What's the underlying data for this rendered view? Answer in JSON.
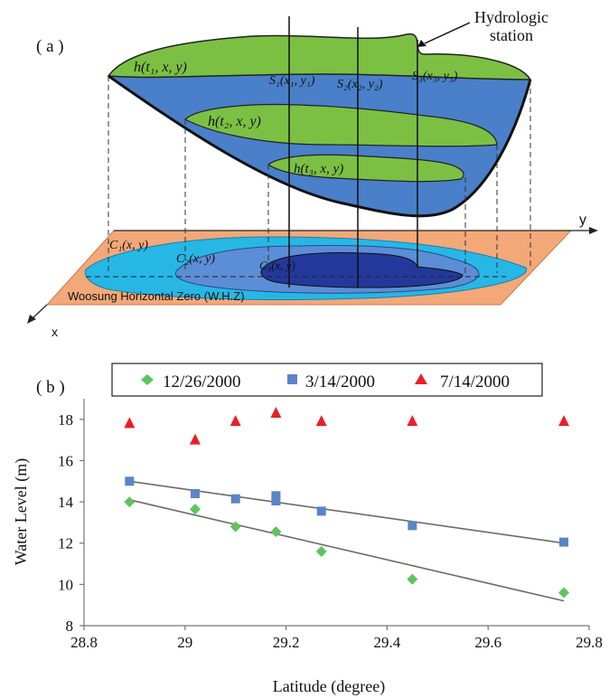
{
  "colors": {
    "green": "#7bc043",
    "blue_mid": "#4a7fc9",
    "light_blue": "#27b7e5",
    "mid_blue": "#5b8ed6",
    "dark_blue": "#23389a",
    "orange_plane": "#f2a878",
    "legend_green": "#5ec45e",
    "legend_blue": "#5b85c8",
    "legend_red": "#e8202a",
    "trend": "#6b6b6b"
  },
  "panel_a": {
    "label": "( a )",
    "station_callout": [
      "Hydrologic",
      "station"
    ],
    "surface_labels": {
      "h1": "h(t₁, x, y)",
      "h2": "h(t₂, x, y)",
      "h3": "h(t₃, x, y)"
    },
    "station_labels": [
      "S₁(x₁, y₁)",
      "S₂(x₂, y₂)",
      "S₃(x₃, y₃)"
    ],
    "contour_labels": [
      "C₁(x, y)",
      "C₂(x, y)",
      "C₃(x, y)"
    ],
    "axis_y": "y",
    "axis_x": "x",
    "plane_label": "Woosung Horizontal Zero (W.H.Z)"
  },
  "panel_b": {
    "label": "( b )"
  },
  "chart_data": {
    "type": "scatter",
    "title": "",
    "xlabel": "Latitude (degree)",
    "ylabel": "Water Level (m)",
    "xlim": [
      28.8,
      29.8
    ],
    "ylim": [
      8,
      19
    ],
    "xticks": [
      "28.8",
      "29",
      "29.2",
      "29.4",
      "29.6",
      "29.8"
    ],
    "yticks": [
      "8",
      "10",
      "12",
      "14",
      "16",
      "18"
    ],
    "legend_position": "top",
    "series": [
      {
        "name": "12/26/2000",
        "marker": "diamond",
        "color": "#5ec45e",
        "x": [
          28.89,
          29.02,
          29.1,
          29.18,
          29.27,
          29.45,
          29.75
        ],
        "y": [
          14.0,
          13.65,
          12.8,
          12.55,
          11.6,
          10.25,
          9.6
        ],
        "trend": [
          [
            28.89,
            14.1
          ],
          [
            29.75,
            9.2
          ]
        ]
      },
      {
        "name": "3/14/2000",
        "marker": "square",
        "color": "#5b85c8",
        "x": [
          28.89,
          29.02,
          29.1,
          29.18,
          29.18,
          29.27,
          29.45,
          29.75
        ],
        "y": [
          15.0,
          14.4,
          14.15,
          14.3,
          14.05,
          13.55,
          12.85,
          12.05
        ],
        "trend": [
          [
            28.89,
            15.0
          ],
          [
            29.75,
            12.0
          ]
        ]
      },
      {
        "name": "7/14/2000",
        "marker": "triangle",
        "color": "#e8202a",
        "x": [
          28.89,
          29.02,
          29.1,
          29.18,
          29.27,
          29.45,
          29.75
        ],
        "y": [
          17.8,
          17.0,
          17.9,
          18.3,
          17.9,
          17.9,
          17.9
        ]
      }
    ]
  }
}
